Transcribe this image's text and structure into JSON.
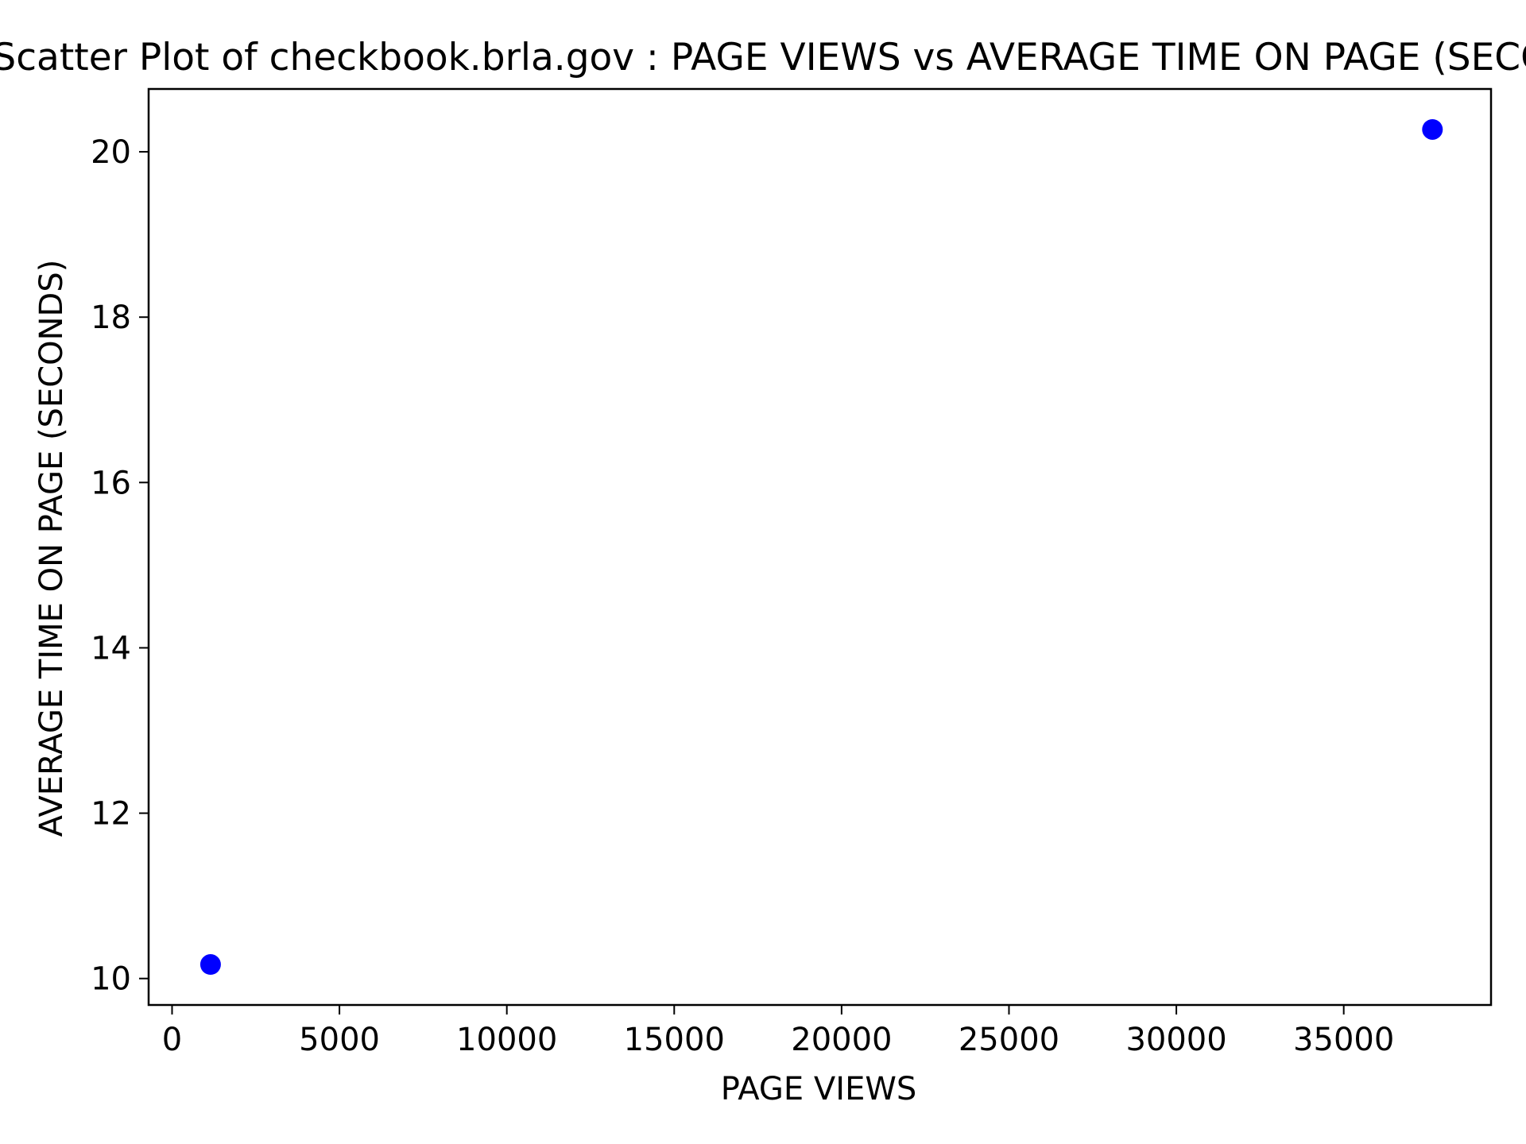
{
  "chart_data": {
    "type": "scatter",
    "title": "Scatter Plot of checkbook.brla.gov : PAGE VIEWS vs AVERAGE TIME ON PAGE (SECONDS)",
    "xlabel": "PAGE VIEWS",
    "ylabel": "AVERAGE TIME ON PAGE (SECONDS)",
    "xlim": [
      -700,
      39400
    ],
    "ylim": [
      9.68,
      20.76
    ],
    "xticks": [
      0,
      5000,
      10000,
      15000,
      20000,
      25000,
      30000,
      35000
    ],
    "xtick_labels": [
      "0",
      "5000",
      "10000",
      "15000",
      "20000",
      "25000",
      "30000",
      "35000"
    ],
    "yticks": [
      10,
      12,
      14,
      16,
      18,
      20
    ],
    "ytick_labels": [
      "10",
      "12",
      "14",
      "16",
      "18",
      "20"
    ],
    "grid": false,
    "series": [
      {
        "color": "#0000ff",
        "points": [
          {
            "x": 1150,
            "y": 10.17
          },
          {
            "x": 37650,
            "y": 20.27
          }
        ]
      }
    ]
  }
}
